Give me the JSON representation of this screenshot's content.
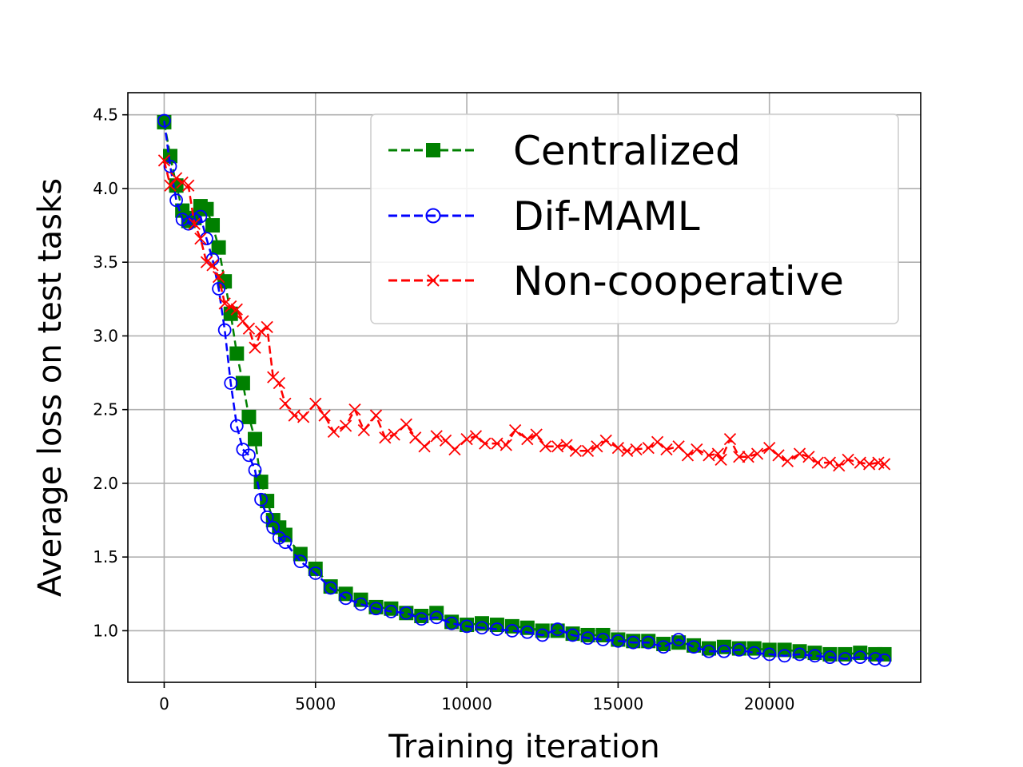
{
  "chart_data": {
    "type": "line",
    "title": "",
    "xlabel": "Training iteration",
    "ylabel": "Average loss on test tasks",
    "xlim": [
      -1200,
      25000
    ],
    "ylim": [
      0.65,
      4.65
    ],
    "xticks": [
      0,
      5000,
      10000,
      15000,
      20000
    ],
    "xtick_labels": [
      "0",
      "5000",
      "10000",
      "15000",
      "20000"
    ],
    "yticks": [
      1.0,
      1.5,
      2.0,
      2.5,
      3.0,
      3.5,
      4.0,
      4.5
    ],
    "ytick_labels": [
      "1.0",
      "1.5",
      "2.0",
      "2.5",
      "3.0",
      "3.5",
      "4.0",
      "4.5"
    ],
    "grid": true,
    "legend_position": "top-right",
    "series": [
      {
        "name": "Centralized",
        "color": "#008000",
        "marker": "square",
        "x": [
          0,
          200,
          400,
          600,
          800,
          1000,
          1200,
          1400,
          1600,
          1800,
          2000,
          2200,
          2400,
          2600,
          2800,
          3000,
          3200,
          3400,
          3600,
          3800,
          4000,
          4500,
          5000,
          5500,
          6000,
          6500,
          7000,
          7500,
          8000,
          8500,
          9000,
          9500,
          10000,
          10500,
          11000,
          11500,
          12000,
          12500,
          13000,
          13500,
          14000,
          14500,
          15000,
          15500,
          16000,
          16500,
          17000,
          17500,
          18000,
          18500,
          19000,
          19500,
          20000,
          20500,
          21000,
          21500,
          22000,
          22500,
          23000,
          23500,
          23800
        ],
        "values": [
          4.45,
          4.22,
          4.02,
          3.85,
          3.78,
          3.8,
          3.88,
          3.86,
          3.75,
          3.6,
          3.37,
          3.15,
          2.88,
          2.68,
          2.45,
          2.3,
          2.01,
          1.88,
          1.75,
          1.7,
          1.65,
          1.52,
          1.42,
          1.3,
          1.25,
          1.21,
          1.16,
          1.15,
          1.12,
          1.1,
          1.12,
          1.06,
          1.04,
          1.05,
          1.04,
          1.03,
          1.02,
          1.0,
          1.0,
          0.98,
          0.97,
          0.97,
          0.94,
          0.93,
          0.93,
          0.91,
          0.92,
          0.9,
          0.88,
          0.89,
          0.88,
          0.88,
          0.87,
          0.87,
          0.86,
          0.85,
          0.84,
          0.84,
          0.85,
          0.84,
          0.84
        ]
      },
      {
        "name": "Dif-MAML",
        "color": "#0000ff",
        "marker": "circle",
        "x": [
          0,
          200,
          400,
          600,
          800,
          1000,
          1200,
          1400,
          1600,
          1800,
          2000,
          2200,
          2400,
          2600,
          2800,
          3000,
          3200,
          3400,
          3600,
          3800,
          4000,
          4500,
          5000,
          5500,
          6000,
          6500,
          7000,
          7500,
          8000,
          8500,
          9000,
          9500,
          10000,
          10500,
          11000,
          11500,
          12000,
          12500,
          13000,
          13500,
          14000,
          14500,
          15000,
          15500,
          16000,
          16500,
          17000,
          17500,
          18000,
          18500,
          19000,
          19500,
          20000,
          20500,
          21000,
          21500,
          22000,
          22500,
          23000,
          23500,
          23800
        ],
        "values": [
          4.46,
          4.15,
          3.92,
          3.79,
          3.76,
          3.79,
          3.81,
          3.66,
          3.52,
          3.32,
          3.04,
          2.68,
          2.39,
          2.23,
          2.19,
          2.09,
          1.89,
          1.77,
          1.7,
          1.63,
          1.6,
          1.47,
          1.39,
          1.29,
          1.22,
          1.18,
          1.15,
          1.13,
          1.12,
          1.08,
          1.09,
          1.05,
          1.03,
          1.02,
          1.01,
          1.0,
          0.99,
          0.97,
          1.01,
          0.97,
          0.95,
          0.94,
          0.93,
          0.92,
          0.92,
          0.89,
          0.94,
          0.89,
          0.86,
          0.86,
          0.87,
          0.85,
          0.84,
          0.83,
          0.84,
          0.83,
          0.82,
          0.81,
          0.82,
          0.81,
          0.8
        ]
      },
      {
        "name": "Non-cooperative",
        "color": "#ff0000",
        "marker": "x",
        "x": [
          0,
          200,
          400,
          600,
          800,
          1000,
          1200,
          1400,
          1600,
          1800,
          2000,
          2200,
          2400,
          2600,
          2800,
          3000,
          3200,
          3400,
          3600,
          3800,
          4000,
          4300,
          4600,
          5000,
          5300,
          5600,
          6000,
          6300,
          6600,
          7000,
          7300,
          7600,
          8000,
          8300,
          8600,
          9000,
          9300,
          9600,
          10000,
          10300,
          10600,
          11000,
          11300,
          11600,
          12000,
          12300,
          12600,
          13000,
          13300,
          13600,
          14000,
          14300,
          14600,
          15000,
          15300,
          15600,
          16000,
          16300,
          16600,
          17000,
          17300,
          17600,
          18000,
          18300,
          18400,
          18700,
          19000,
          19300,
          19600,
          20000,
          20300,
          20600,
          21000,
          21300,
          21600,
          22000,
          22300,
          22600,
          23000,
          23300,
          23600,
          23800
        ],
        "values": [
          4.19,
          4.02,
          4.07,
          4.04,
          4.02,
          3.76,
          3.66,
          3.5,
          3.48,
          3.4,
          3.22,
          3.2,
          3.18,
          3.1,
          3.05,
          2.92,
          3.03,
          3.06,
          2.72,
          2.68,
          2.54,
          2.46,
          2.45,
          2.54,
          2.46,
          2.35,
          2.39,
          2.5,
          2.36,
          2.46,
          2.31,
          2.33,
          2.4,
          2.31,
          2.25,
          2.32,
          2.29,
          2.23,
          2.3,
          2.32,
          2.27,
          2.27,
          2.26,
          2.36,
          2.3,
          2.33,
          2.25,
          2.25,
          2.26,
          2.22,
          2.22,
          2.25,
          2.29,
          2.24,
          2.22,
          2.23,
          2.24,
          2.28,
          2.23,
          2.25,
          2.19,
          2.23,
          2.19,
          2.2,
          2.16,
          2.3,
          2.18,
          2.18,
          2.2,
          2.24,
          2.19,
          2.15,
          2.2,
          2.18,
          2.14,
          2.14,
          2.12,
          2.16,
          2.14,
          2.13,
          2.14,
          2.13
        ]
      }
    ]
  }
}
